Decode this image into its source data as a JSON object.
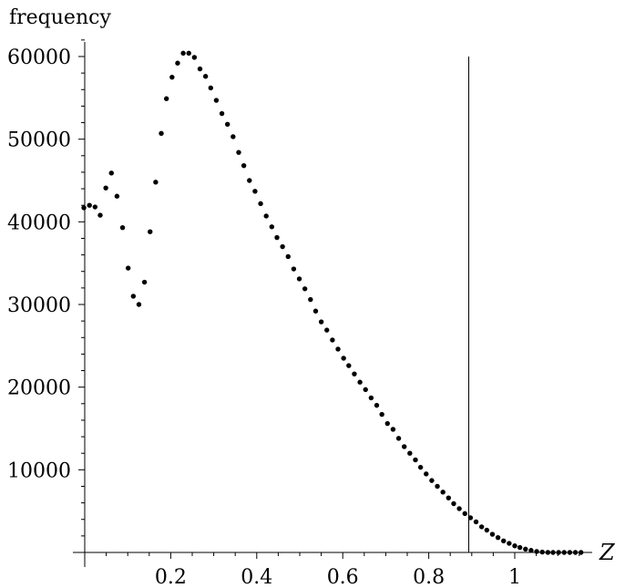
{
  "chart_data": {
    "type": "scatter",
    "title": "",
    "xlabel": "Z",
    "ylabel": "frequency",
    "xlim": [
      -0.03,
      1.2
    ],
    "ylim": [
      0,
      60000
    ],
    "x_ticks": [
      0.2,
      0.4,
      0.6,
      0.8,
      1
    ],
    "x_tick_labels": [
      "0.2",
      "0.4",
      "0.6",
      "0.8",
      "1"
    ],
    "y_ticks": [
      10000,
      20000,
      30000,
      40000,
      50000,
      60000
    ],
    "y_tick_labels": [
      "10000",
      "20000",
      "30000",
      "40000",
      "50000",
      "60000"
    ],
    "grid": false,
    "legend": "none",
    "vertical_line_x": 0.893,
    "marker_color": "#000000",
    "series": [
      {
        "x": [
          -0.002,
          0.011,
          0.024,
          0.036,
          0.049,
          0.062,
          0.075,
          0.088,
          0.101,
          0.113,
          0.126,
          0.139,
          0.152,
          0.165,
          0.178,
          0.19,
          0.203,
          0.216,
          0.229,
          0.242,
          0.255,
          0.268,
          0.281,
          0.293,
          0.306,
          0.319,
          0.332,
          0.345,
          0.358,
          0.37,
          0.383,
          0.396,
          0.409,
          0.422,
          0.435,
          0.447,
          0.46,
          0.473,
          0.486,
          0.499,
          0.512,
          0.525,
          0.537,
          0.55,
          0.563,
          0.576,
          0.589,
          0.602,
          0.614,
          0.627,
          0.64,
          0.653,
          0.666,
          0.679,
          0.691,
          0.704,
          0.717,
          0.73,
          0.743,
          0.756,
          0.769,
          0.781,
          0.794,
          0.807,
          0.82,
          0.833,
          0.846,
          0.858,
          0.871,
          0.884,
          0.897,
          0.91,
          0.923,
          0.935,
          0.948,
          0.961,
          0.974,
          0.987,
          1.0,
          1.012,
          1.025,
          1.038,
          1.051,
          1.064,
          1.077,
          1.089,
          1.102,
          1.115,
          1.128,
          1.141,
          1.154
        ],
        "y": [
          41700,
          42000,
          41800,
          40800,
          44100,
          45900,
          43100,
          39300,
          34400,
          31000,
          30000,
          32700,
          38800,
          44800,
          50700,
          54900,
          57500,
          59200,
          60400,
          60400,
          59900,
          58500,
          57600,
          56200,
          54700,
          53100,
          51800,
          50300,
          48400,
          46800,
          45000,
          43700,
          42200,
          40700,
          39400,
          38100,
          37000,
          35800,
          34300,
          33100,
          31900,
          30600,
          29200,
          27900,
          26900,
          25700,
          24600,
          23500,
          22600,
          21600,
          20600,
          19700,
          18700,
          17800,
          16700,
          15600,
          14900,
          13800,
          12800,
          12000,
          11200,
          10300,
          9500,
          8700,
          8000,
          7300,
          6600,
          5900,
          5300,
          4700,
          4200,
          3700,
          3100,
          2700,
          2200,
          1800,
          1400,
          1100,
          800,
          600,
          400,
          250,
          120,
          50,
          10,
          0,
          0,
          0,
          0,
          0,
          0
        ]
      }
    ]
  }
}
